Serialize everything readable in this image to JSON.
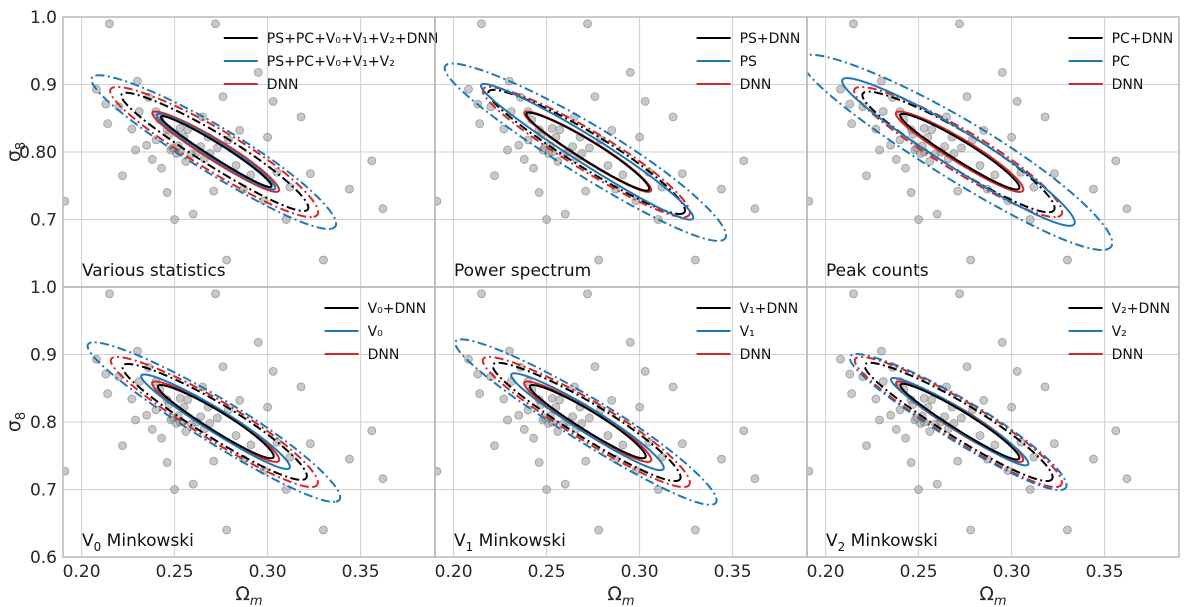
{
  "colors": {
    "black": "#000000",
    "blue": "#1f77b4",
    "red": "#d62728",
    "grid": "#d0d0d0",
    "frame": "#b8b8b8",
    "points": "#9a9a9a"
  },
  "chart_data": {
    "type": "scatter",
    "description_axes": {
      "xlabel_base": "Ω",
      "xlabel_sub": "m",
      "ylabel_base": "σ",
      "ylabel_sub": "8",
      "xlim": [
        0.19,
        0.39
      ],
      "ylim": [
        0.6,
        1.0
      ],
      "xticks": [
        "0.20",
        "0.25",
        "0.30",
        "0.35"
      ],
      "yticks_top": [
        "1.0",
        "0.9",
        "0.80",
        "0.7"
      ],
      "yticks_bottom": [
        "1.0",
        "0.9",
        "0.8",
        "0.7",
        "0.6"
      ]
    },
    "fiducial_points": [
      [
        0.191,
        0.727
      ],
      [
        0.208,
        0.893
      ],
      [
        0.213,
        0.871
      ],
      [
        0.214,
        0.842
      ],
      [
        0.22,
        0.867
      ],
      [
        0.222,
        0.765
      ],
      [
        0.227,
        0.834
      ],
      [
        0.231,
        0.86
      ],
      [
        0.235,
        0.81
      ],
      [
        0.238,
        0.789
      ],
      [
        0.24,
        0.86
      ],
      [
        0.242,
        0.848
      ],
      [
        0.243,
        0.776
      ],
      [
        0.246,
        0.833
      ],
      [
        0.247,
        0.826
      ],
      [
        0.248,
        0.803
      ],
      [
        0.249,
        0.806
      ],
      [
        0.251,
        0.798
      ],
      [
        0.252,
        0.809
      ],
      [
        0.253,
        0.8
      ],
      [
        0.255,
        0.822
      ],
      [
        0.256,
        0.786
      ],
      [
        0.257,
        0.833
      ],
      [
        0.259,
        0.797
      ],
      [
        0.262,
        0.8
      ],
      [
        0.264,
        0.808
      ],
      [
        0.266,
        0.79
      ],
      [
        0.268,
        0.822
      ],
      [
        0.269,
        0.798
      ],
      [
        0.271,
        0.742
      ],
      [
        0.273,
        0.806
      ],
      [
        0.276,
        0.882
      ],
      [
        0.279,
        0.818
      ],
      [
        0.283,
        0.78
      ],
      [
        0.287,
        0.745
      ],
      [
        0.291,
        0.766
      ],
      [
        0.295,
        0.918
      ],
      [
        0.3,
        0.822
      ],
      [
        0.303,
        0.875
      ],
      [
        0.312,
        0.748
      ],
      [
        0.323,
        0.768
      ],
      [
        0.344,
        0.745
      ],
      [
        0.356,
        0.787
      ],
      [
        0.362,
        0.716
      ],
      [
        0.25,
        0.7
      ],
      [
        0.26,
        0.708
      ],
      [
        0.278,
        0.64
      ],
      [
        0.246,
        0.74
      ],
      [
        0.229,
        0.803
      ],
      [
        0.236,
        0.881
      ],
      [
        0.33,
        0.64
      ],
      [
        0.272,
        0.99
      ],
      [
        0.253,
        0.835
      ],
      [
        0.265,
        0.852
      ],
      [
        0.285,
        0.832
      ],
      [
        0.24,
        0.818
      ],
      [
        0.23,
        0.905
      ],
      [
        0.215,
        0.99
      ],
      [
        0.298,
        0.728
      ],
      [
        0.305,
        0.77
      ],
      [
        0.318,
        0.852
      ],
      [
        0.31,
        0.7
      ]
    ],
    "contour_model": {
      "note": "Each contour is an ellipse in data units, tilted along sigma8 ≈ S8-degeneracy; inner = 68% (solid), outer = 95% (dash-dot).",
      "center": [
        0.273,
        0.801
      ],
      "slope": -1.79
    },
    "panels": [
      {
        "title": "Various statistics",
        "legend": [
          {
            "label": "PS+PC+V₀+V₁+V₂+DNN",
            "color": "black"
          },
          {
            "label": "PS+PC+V₀+V₁+V₂",
            "color": "blue"
          },
          {
            "label": "DNN",
            "color": "red"
          }
        ],
        "contours": [
          {
            "color": "black",
            "style": "solid",
            "half_length": 0.06,
            "half_width": 0.0062
          },
          {
            "color": "black",
            "style": "dashdot",
            "half_length": 0.1,
            "half_width": 0.014
          },
          {
            "color": "blue",
            "style": "solid",
            "half_length": 0.064,
            "half_width": 0.0075
          },
          {
            "color": "blue",
            "style": "dashdot",
            "half_length": 0.13,
            "half_width": 0.02
          },
          {
            "color": "red",
            "style": "solid",
            "half_length": 0.068,
            "half_width": 0.009
          },
          {
            "color": "red",
            "style": "dashdot",
            "half_length": 0.11,
            "half_width": 0.018
          }
        ]
      },
      {
        "title": "Power spectrum",
        "legend": [
          {
            "label": "PS+DNN",
            "color": "black"
          },
          {
            "label": "PS",
            "color": "blue"
          },
          {
            "label": "DNN",
            "color": "red"
          }
        ],
        "contours": [
          {
            "color": "black",
            "style": "solid",
            "half_length": 0.066,
            "half_width": 0.0085
          },
          {
            "color": "black",
            "style": "dashdot",
            "half_length": 0.105,
            "half_width": 0.015
          },
          {
            "color": "blue",
            "style": "solid",
            "half_length": 0.115,
            "half_width": 0.012
          },
          {
            "color": "blue",
            "style": "dashdot",
            "half_length": 0.15,
            "half_width": 0.022
          },
          {
            "color": "red",
            "style": "solid",
            "half_length": 0.068,
            "half_width": 0.009
          },
          {
            "color": "red",
            "style": "dashdot",
            "half_length": 0.11,
            "half_width": 0.017
          }
        ]
      },
      {
        "title": "Peak counts",
        "legend": [
          {
            "label": "PC+DNN",
            "color": "black"
          },
          {
            "label": "PC",
            "color": "blue"
          },
          {
            "label": "DNN",
            "color": "red"
          }
        ],
        "contours": [
          {
            "color": "black",
            "style": "solid",
            "half_length": 0.064,
            "half_width": 0.0085
          },
          {
            "color": "black",
            "style": "dashdot",
            "half_length": 0.102,
            "half_width": 0.016
          },
          {
            "color": "blue",
            "style": "solid",
            "half_length": 0.125,
            "half_width": 0.016
          },
          {
            "color": "blue",
            "style": "dashdot",
            "half_length": 0.165,
            "half_width": 0.026
          },
          {
            "color": "red",
            "style": "solid",
            "half_length": 0.068,
            "half_width": 0.01
          },
          {
            "color": "red",
            "style": "dashdot",
            "half_length": 0.11,
            "half_width": 0.018
          }
        ]
      },
      {
        "title": "Minkowski",
        "title_prefix": "V",
        "title_sub": "0",
        "legend": [
          {
            "label": "V₀+DNN",
            "color": "black"
          },
          {
            "label": "V₀",
            "color": "blue"
          },
          {
            "label": "DNN",
            "color": "red"
          }
        ],
        "contours": [
          {
            "color": "black",
            "style": "solid",
            "half_length": 0.062,
            "half_width": 0.0085
          },
          {
            "color": "black",
            "style": "dashdot",
            "half_length": 0.098,
            "half_width": 0.015
          },
          {
            "color": "blue",
            "style": "solid",
            "half_length": 0.08,
            "half_width": 0.01
          },
          {
            "color": "blue",
            "style": "dashdot",
            "half_length": 0.135,
            "half_width": 0.019
          },
          {
            "color": "red",
            "style": "solid",
            "half_length": 0.068,
            "half_width": 0.0095
          },
          {
            "color": "red",
            "style": "dashdot",
            "half_length": 0.11,
            "half_width": 0.017
          }
        ]
      },
      {
        "title": "Minkowski",
        "title_prefix": "V",
        "title_sub": "1",
        "legend": [
          {
            "label": "V₁+DNN",
            "color": "black"
          },
          {
            "label": "V₁",
            "color": "blue"
          },
          {
            "label": "DNN",
            "color": "red"
          }
        ],
        "contours": [
          {
            "color": "black",
            "style": "solid",
            "half_length": 0.062,
            "half_width": 0.0085
          },
          {
            "color": "black",
            "style": "dashdot",
            "half_length": 0.1,
            "half_width": 0.015
          },
          {
            "color": "blue",
            "style": "solid",
            "half_length": 0.082,
            "half_width": 0.0105
          },
          {
            "color": "blue",
            "style": "dashdot",
            "half_length": 0.14,
            "half_width": 0.019
          },
          {
            "color": "red",
            "style": "solid",
            "half_length": 0.068,
            "half_width": 0.0095
          },
          {
            "color": "red",
            "style": "dashdot",
            "half_length": 0.11,
            "half_width": 0.017
          }
        ]
      },
      {
        "title": "Minkowski",
        "title_prefix": "V",
        "title_sub": "2",
        "legend": [
          {
            "label": "V₂+DNN",
            "color": "black"
          },
          {
            "label": "V₂",
            "color": "blue"
          },
          {
            "label": "DNN",
            "color": "red"
          }
        ],
        "contours": [
          {
            "color": "black",
            "style": "solid",
            "half_length": 0.064,
            "half_width": 0.008
          },
          {
            "color": "black",
            "style": "dashdot",
            "half_length": 0.1,
            "half_width": 0.015
          },
          {
            "color": "blue",
            "style": "solid",
            "half_length": 0.074,
            "half_width": 0.009
          },
          {
            "color": "blue",
            "style": "dashdot",
            "half_length": 0.115,
            "half_width": 0.018
          },
          {
            "color": "red",
            "style": "solid",
            "half_length": 0.068,
            "half_width": 0.0095
          },
          {
            "color": "red",
            "style": "dashdot",
            "half_length": 0.11,
            "half_width": 0.017
          }
        ]
      }
    ]
  }
}
